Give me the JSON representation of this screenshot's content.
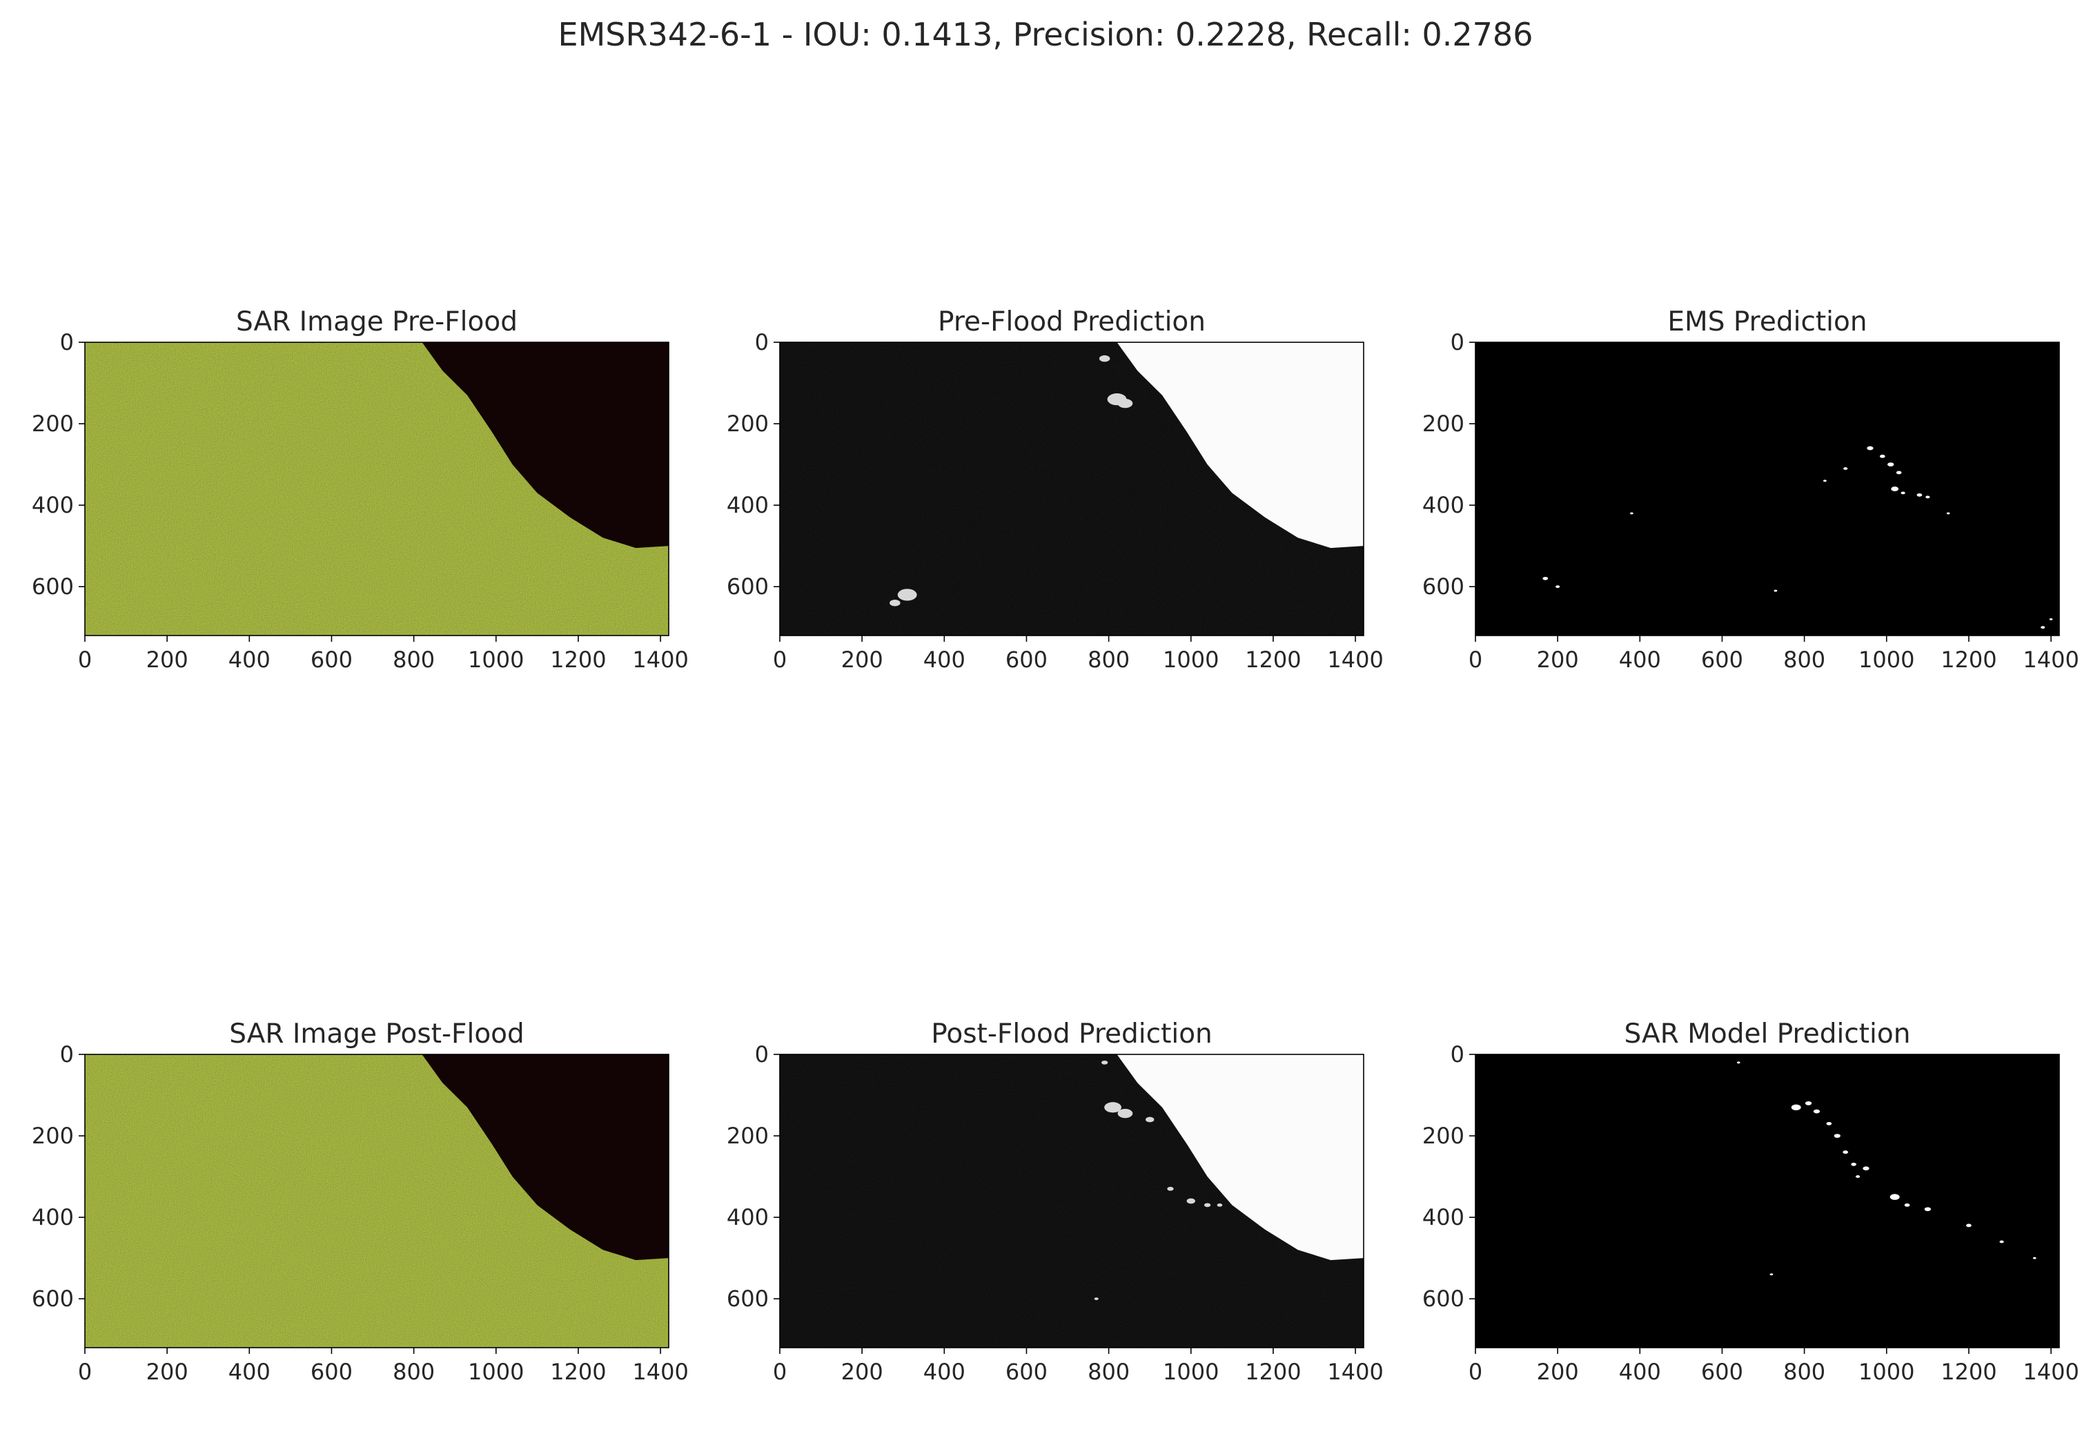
{
  "figure": {
    "title": "EMSR342-6-1 - IOU: 0.1413, Precision: 0.2228, Recall: 0.2786"
  },
  "chart_data": [
    {
      "id": "sar-pre",
      "type": "image",
      "title": "SAR Image Pre-Flood",
      "colormap": "sar-false-color",
      "xlim": [
        0,
        1420
      ],
      "ylim": [
        720,
        0
      ],
      "xticks": [
        0,
        200,
        400,
        600,
        800,
        1000,
        1200,
        1400
      ],
      "yticks": [
        0,
        200,
        400,
        600
      ],
      "coastline": [
        [
          820,
          0
        ],
        [
          870,
          70
        ],
        [
          930,
          130
        ],
        [
          990,
          220
        ],
        [
          1040,
          300
        ],
        [
          1100,
          370
        ],
        [
          1180,
          430
        ],
        [
          1260,
          480
        ],
        [
          1340,
          505
        ],
        [
          1420,
          500
        ]
      ],
      "blobs": []
    },
    {
      "id": "pre-pred",
      "type": "image",
      "title": "Pre-Flood Prediction",
      "colormap": "gray",
      "xlim": [
        0,
        1420
      ],
      "ylim": [
        720,
        0
      ],
      "xticks": [
        0,
        200,
        400,
        600,
        800,
        1000,
        1200,
        1400
      ],
      "yticks": [
        0,
        200,
        400,
        600
      ],
      "coastline": [
        [
          820,
          0
        ],
        [
          870,
          70
        ],
        [
          930,
          130
        ],
        [
          990,
          220
        ],
        [
          1040,
          300
        ],
        [
          1100,
          370
        ],
        [
          1180,
          430
        ],
        [
          1260,
          480
        ],
        [
          1340,
          505
        ],
        [
          1420,
          500
        ]
      ],
      "blobs": [
        [
          790,
          40,
          10
        ],
        [
          820,
          140,
          18
        ],
        [
          840,
          150,
          14
        ],
        [
          310,
          620,
          18
        ],
        [
          280,
          640,
          10
        ]
      ]
    },
    {
      "id": "ems-pred",
      "type": "image",
      "title": "EMS Prediction",
      "colormap": "binary",
      "xlim": [
        0,
        1420
      ],
      "ylim": [
        720,
        0
      ],
      "xticks": [
        0,
        200,
        400,
        600,
        800,
        1000,
        1200,
        1400
      ],
      "yticks": [
        0,
        200,
        400,
        600
      ],
      "coastline": [],
      "blobs": [
        [
          960,
          260,
          6
        ],
        [
          990,
          280,
          5
        ],
        [
          1010,
          300,
          6
        ],
        [
          1030,
          320,
          5
        ],
        [
          1020,
          360,
          7
        ],
        [
          1040,
          370,
          4
        ],
        [
          1080,
          375,
          5
        ],
        [
          1100,
          380,
          4
        ],
        [
          900,
          310,
          4
        ],
        [
          850,
          340,
          3
        ],
        [
          1150,
          420,
          3
        ],
        [
          1380,
          700,
          4
        ],
        [
          1400,
          680,
          3
        ],
        [
          170,
          580,
          5
        ],
        [
          200,
          600,
          4
        ],
        [
          380,
          420,
          3
        ],
        [
          730,
          610,
          3
        ]
      ]
    },
    {
      "id": "sar-post",
      "type": "image",
      "title": "SAR Image Post-Flood",
      "colormap": "sar-false-color",
      "xlim": [
        0,
        1420
      ],
      "ylim": [
        720,
        0
      ],
      "xticks": [
        0,
        200,
        400,
        600,
        800,
        1000,
        1200,
        1400
      ],
      "yticks": [
        0,
        200,
        400,
        600
      ],
      "coastline": [
        [
          820,
          0
        ],
        [
          870,
          70
        ],
        [
          930,
          130
        ],
        [
          990,
          220
        ],
        [
          1040,
          300
        ],
        [
          1100,
          370
        ],
        [
          1180,
          430
        ],
        [
          1260,
          480
        ],
        [
          1340,
          505
        ],
        [
          1420,
          500
        ]
      ],
      "blobs": []
    },
    {
      "id": "post-pred",
      "type": "image",
      "title": "Post-Flood Prediction",
      "colormap": "gray",
      "xlim": [
        0,
        1420
      ],
      "ylim": [
        720,
        0
      ],
      "xticks": [
        0,
        200,
        400,
        600,
        800,
        1000,
        1200,
        1400
      ],
      "yticks": [
        0,
        200,
        400,
        600
      ],
      "coastline": [
        [
          820,
          0
        ],
        [
          870,
          70
        ],
        [
          930,
          130
        ],
        [
          990,
          220
        ],
        [
          1040,
          300
        ],
        [
          1100,
          370
        ],
        [
          1180,
          430
        ],
        [
          1260,
          480
        ],
        [
          1340,
          505
        ],
        [
          1420,
          500
        ]
      ],
      "blobs": [
        [
          790,
          20,
          6
        ],
        [
          810,
          130,
          16
        ],
        [
          840,
          145,
          14
        ],
        [
          900,
          160,
          8
        ],
        [
          950,
          330,
          6
        ],
        [
          1000,
          360,
          8
        ],
        [
          1040,
          370,
          6
        ],
        [
          1070,
          370,
          5
        ],
        [
          770,
          600,
          4
        ]
      ]
    },
    {
      "id": "sar-model-pred",
      "type": "image",
      "title": "SAR Model Prediction",
      "colormap": "binary",
      "xlim": [
        0,
        1420
      ],
      "ylim": [
        720,
        0
      ],
      "xticks": [
        0,
        200,
        400,
        600,
        800,
        1000,
        1200,
        1400
      ],
      "yticks": [
        0,
        200,
        400,
        600
      ],
      "coastline": [],
      "blobs": [
        [
          780,
          130,
          9
        ],
        [
          810,
          120,
          6
        ],
        [
          830,
          140,
          6
        ],
        [
          860,
          170,
          5
        ],
        [
          880,
          200,
          6
        ],
        [
          900,
          240,
          5
        ],
        [
          920,
          270,
          5
        ],
        [
          950,
          280,
          6
        ],
        [
          930,
          300,
          4
        ],
        [
          1020,
          350,
          9
        ],
        [
          1050,
          370,
          5
        ],
        [
          1100,
          380,
          6
        ],
        [
          1200,
          420,
          5
        ],
        [
          1280,
          460,
          4
        ],
        [
          1360,
          500,
          3
        ],
        [
          640,
          20,
          3
        ],
        [
          720,
          540,
          3
        ]
      ]
    }
  ]
}
